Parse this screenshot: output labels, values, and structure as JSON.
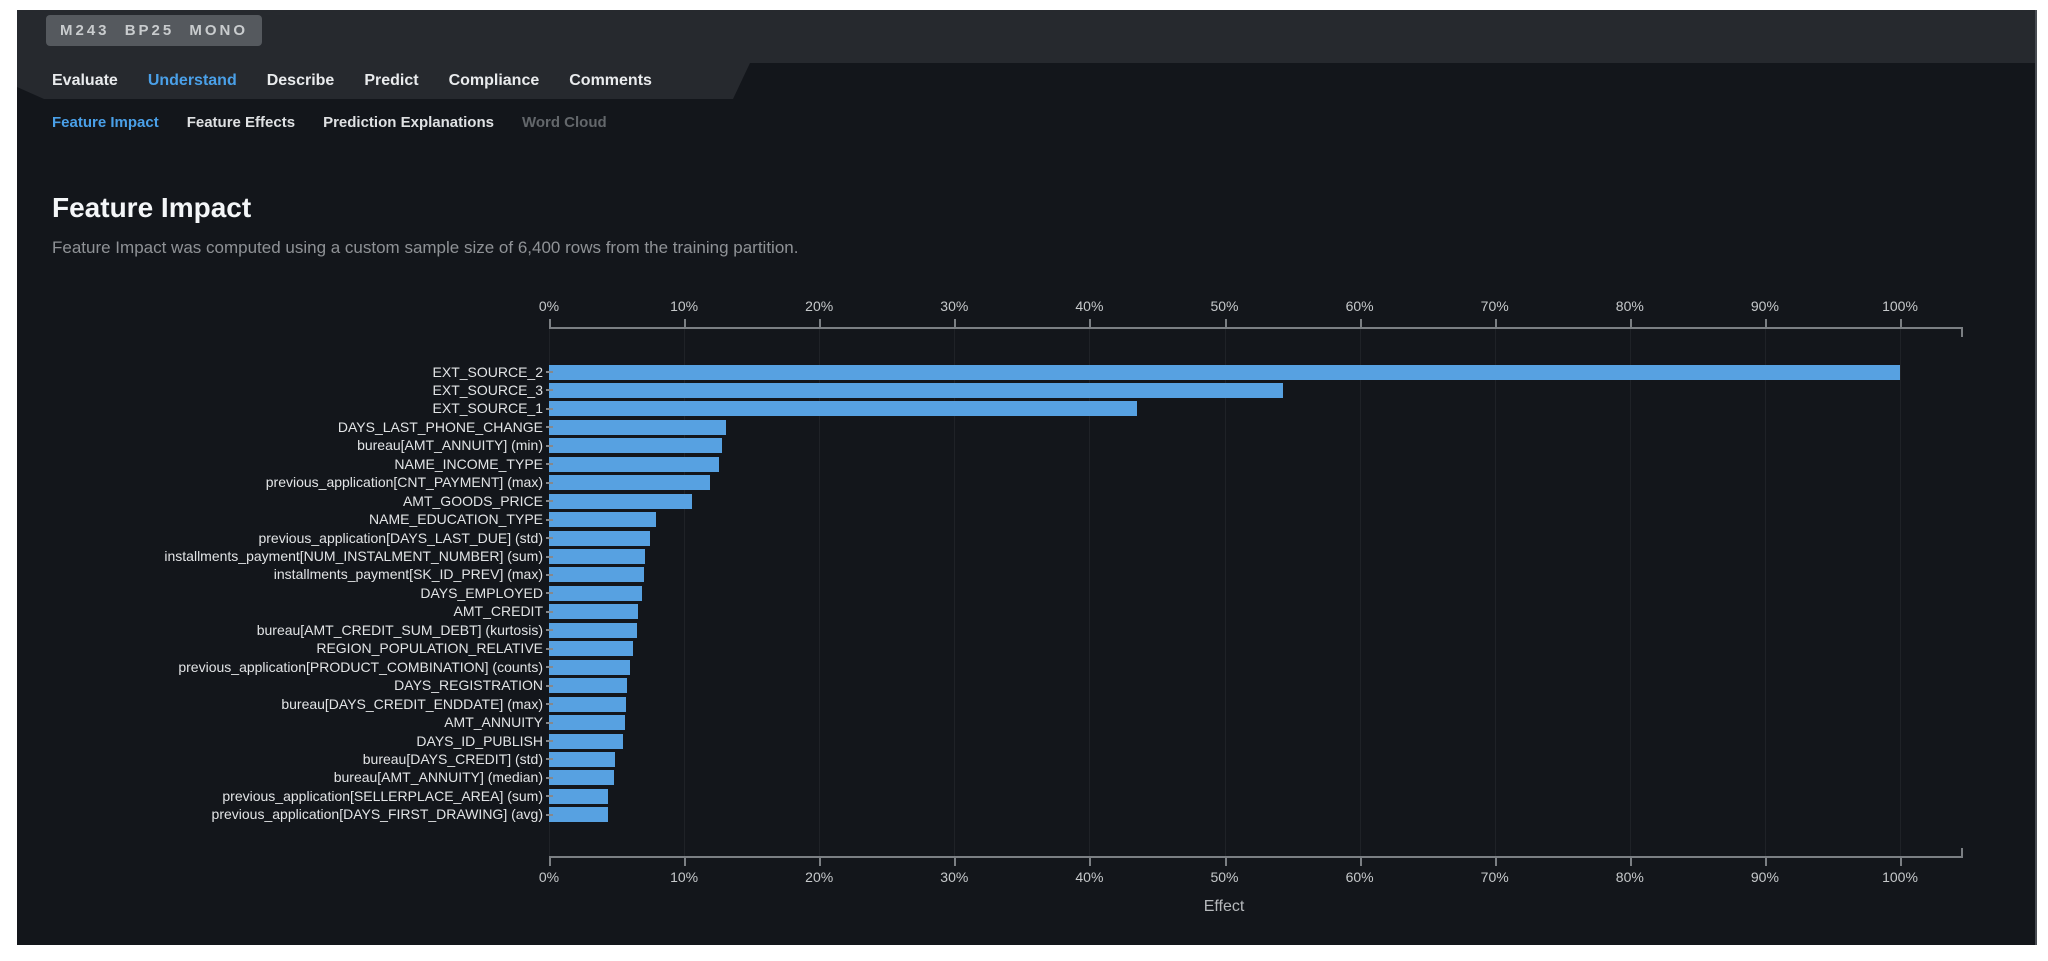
{
  "badge": "M243 BP25 MONO",
  "tabs": [
    {
      "label": "Evaluate",
      "active": false
    },
    {
      "label": "Understand",
      "active": true
    },
    {
      "label": "Describe",
      "active": false
    },
    {
      "label": "Predict",
      "active": false
    },
    {
      "label": "Compliance",
      "active": false
    },
    {
      "label": "Comments",
      "active": false
    }
  ],
  "subtabs": [
    {
      "label": "Feature Impact",
      "state": "active"
    },
    {
      "label": "Feature Effects",
      "state": "normal"
    },
    {
      "label": "Prediction Explanations",
      "state": "normal"
    },
    {
      "label": "Word Cloud",
      "state": "disabled"
    }
  ],
  "section": {
    "title": "Feature Impact",
    "description": "Feature Impact was computed using a custom sample size of 6,400 rows from the training partition."
  },
  "chart_data": {
    "type": "bar",
    "orientation": "horizontal",
    "title": "Feature Impact",
    "xlabel": "Effect",
    "ylabel": "",
    "x_tick_labels": [
      "0%",
      "10%",
      "20%",
      "30%",
      "40%",
      "50%",
      "60%",
      "70%",
      "80%",
      "90%",
      "100%"
    ],
    "xlim": [
      0,
      104.7
    ],
    "grid": true,
    "legend": "none",
    "bar_color": "#57a1e1",
    "categories": [
      "EXT_SOURCE_2",
      "EXT_SOURCE_3",
      "EXT_SOURCE_1",
      "DAYS_LAST_PHONE_CHANGE",
      "bureau[AMT_ANNUITY] (min)",
      "NAME_INCOME_TYPE",
      "previous_application[CNT_PAYMENT] (max)",
      "AMT_GOODS_PRICE",
      "NAME_EDUCATION_TYPE",
      "previous_application[DAYS_LAST_DUE] (std)",
      "installments_payment[NUM_INSTALMENT_NUMBER] (sum)",
      "installments_payment[SK_ID_PREV] (max)",
      "DAYS_EMPLOYED",
      "AMT_CREDIT",
      "bureau[AMT_CREDIT_SUM_DEBT] (kurtosis)",
      "REGION_POPULATION_RELATIVE",
      "previous_application[PRODUCT_COMBINATION] (counts)",
      "DAYS_REGISTRATION",
      "bureau[DAYS_CREDIT_ENDDATE] (max)",
      "AMT_ANNUITY",
      "DAYS_ID_PUBLISH",
      "bureau[DAYS_CREDIT] (std)",
      "bureau[AMT_ANNUITY] (median)",
      "previous_application[SELLERPLACE_AREA] (sum)",
      "previous_application[DAYS_FIRST_DRAWING] (avg)"
    ],
    "values": [
      100,
      54.3,
      43.5,
      13.1,
      12.8,
      12.6,
      11.9,
      10.6,
      7.9,
      7.5,
      7.1,
      7.0,
      6.9,
      6.6,
      6.5,
      6.2,
      6.0,
      5.8,
      5.7,
      5.6,
      5.5,
      4.9,
      4.8,
      4.4,
      4.4
    ]
  },
  "colors": {
    "accent_blue": "#4aa0e8",
    "bar_blue": "#57a1e1",
    "app_background": "#13161b",
    "header_background": "#26292e",
    "badge_background": "#55595e"
  }
}
